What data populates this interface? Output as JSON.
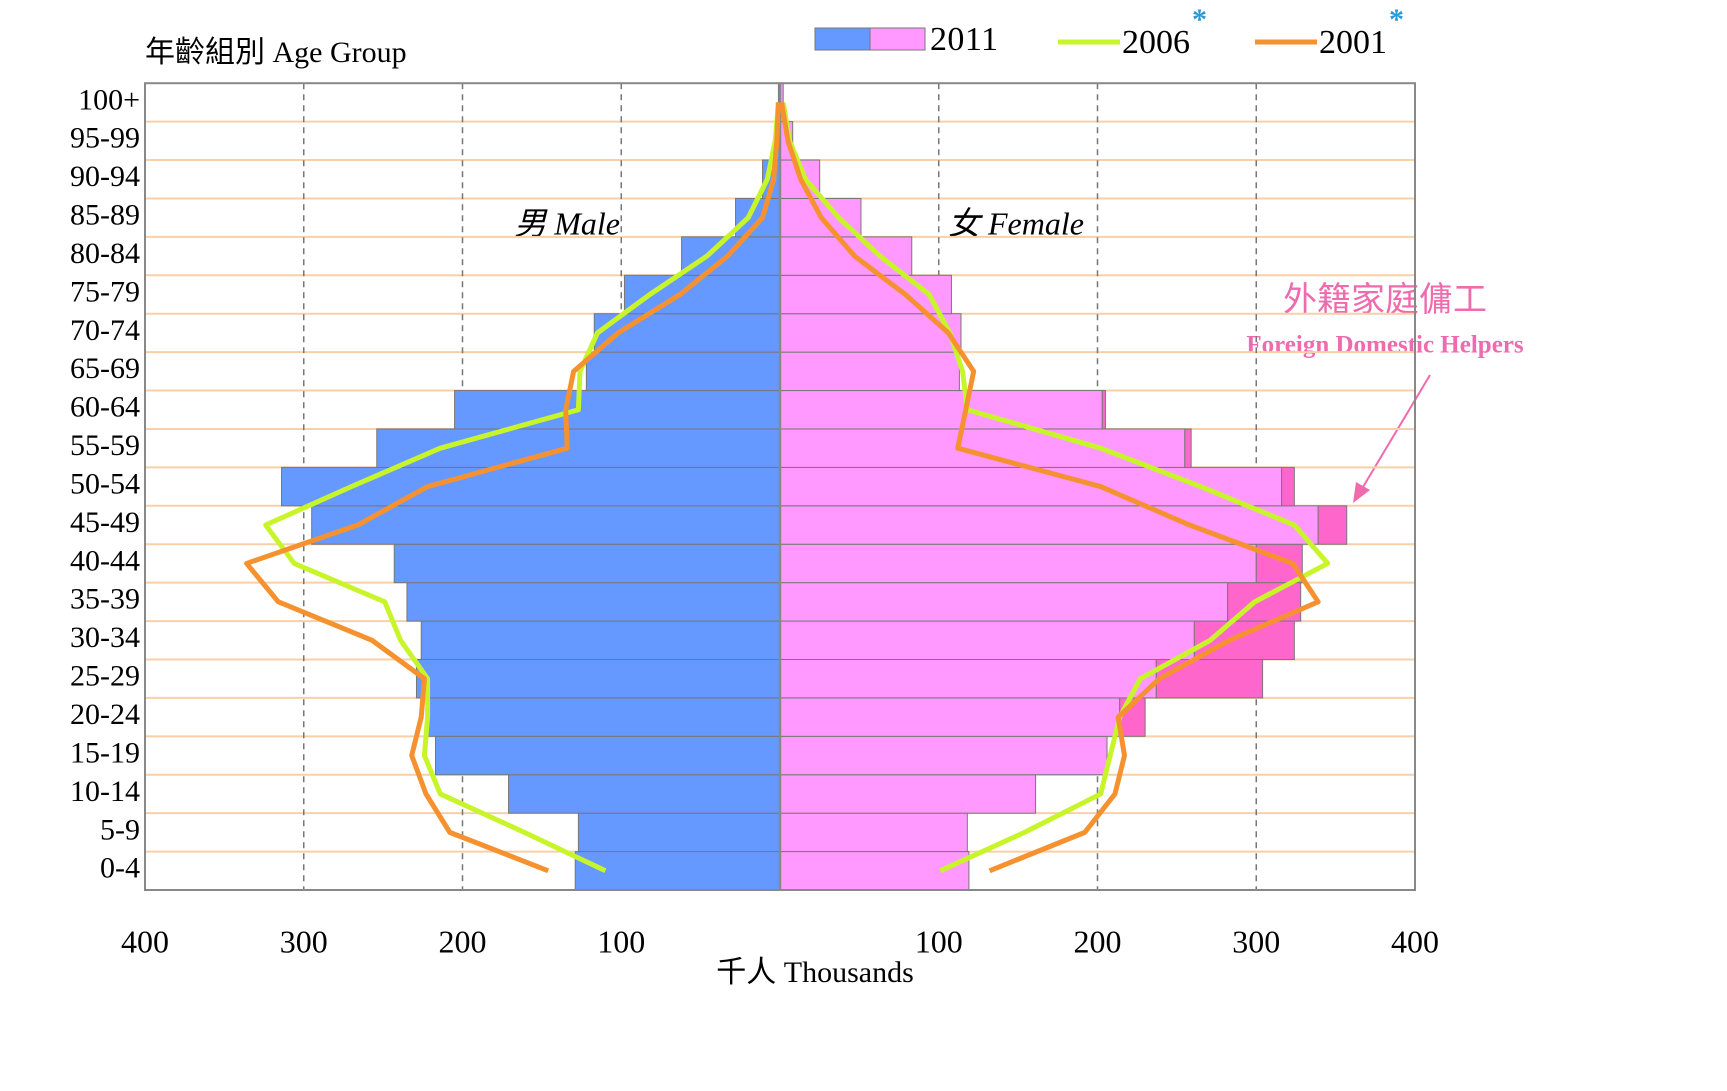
{
  "chart_data": {
    "type": "pyramid",
    "ylabel": "年齡組別 Age Group",
    "xlabel": "千人 Thousands",
    "male_label": "男 Male",
    "female_label": "女 Female",
    "categories": [
      "0-4",
      "5-9",
      "10-14",
      "15-19",
      "20-24",
      "25-29",
      "30-34",
      "35-39",
      "40-44",
      "45-49",
      "50-54",
      "55-59",
      "60-64",
      "65-69",
      "70-74",
      "75-79",
      "80-84",
      "85-89",
      "90-94",
      "95-99",
      "100+"
    ],
    "xlim": [
      -400,
      400
    ],
    "xticks": [
      {
        "value": -400,
        "label": "400"
      },
      {
        "value": -300,
        "label": "300"
      },
      {
        "value": -200,
        "label": "200"
      },
      {
        "value": -100,
        "label": "100"
      },
      100,
      200,
      300,
      400
    ],
    "grid": true,
    "bars": {
      "name": "2011",
      "male": {
        "color": "#6699ff",
        "values": [
          129,
          127,
          171,
          217,
          222,
          229,
          226,
          235,
          243,
          295,
          314,
          254,
          205,
          122,
          117,
          98,
          62,
          28,
          11,
          3,
          1
        ]
      },
      "female": {
        "color": "#ff99ff",
        "values": [
          119,
          118,
          161,
          206,
          214,
          237,
          261,
          282,
          300,
          339,
          316,
          255,
          203,
          113,
          114,
          108,
          83,
          51,
          25,
          8,
          2
        ]
      },
      "fdh": {
        "name": "外籍家庭傭工",
        "sub_name": "Foreign Domestic Helpers",
        "color": "#ff66cc",
        "values": [
          0,
          0,
          0,
          0,
          16,
          67,
          63,
          46,
          29,
          18,
          8,
          4,
          2,
          0,
          0,
          0,
          0,
          0,
          0,
          0,
          0
        ]
      }
    },
    "lines": [
      {
        "name": "2006",
        "marker": "*",
        "color": "#c8f52a",
        "male": [
          110,
          161,
          214,
          224,
          222,
          222,
          239,
          249,
          306,
          324,
          270,
          214,
          127,
          126,
          115,
          82,
          46,
          20,
          8,
          3,
          1
        ],
        "female": [
          101,
          154,
          202,
          208,
          214,
          227,
          271,
          299,
          345,
          324,
          265,
          202,
          118,
          115,
          107,
          94,
          63,
          37,
          16,
          6,
          2
        ]
      },
      {
        "name": "2001",
        "marker": "*",
        "color": "#f5922f",
        "male": [
          146,
          208,
          223,
          232,
          226,
          224,
          257,
          316,
          336,
          266,
          222,
          134,
          135,
          130,
          102,
          63,
          33,
          11,
          4,
          2,
          1
        ],
        "female": [
          132,
          192,
          211,
          217,
          213,
          239,
          283,
          339,
          323,
          258,
          202,
          112,
          117,
          122,
          106,
          79,
          47,
          26,
          13,
          5,
          1
        ]
      }
    ]
  }
}
